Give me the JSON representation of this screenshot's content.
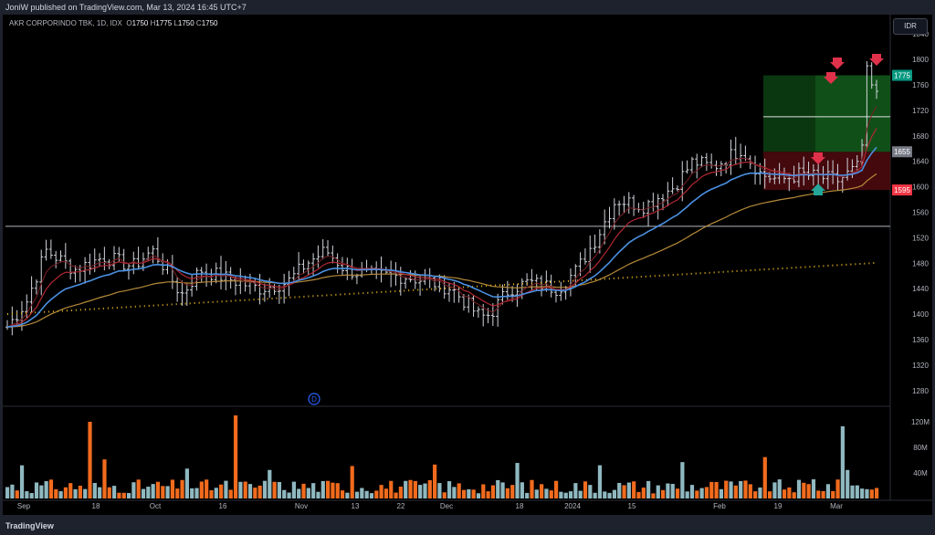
{
  "header": {
    "published": "JoniW published on TradingView.com, Mar 13, 2024 16:45 UTC+7"
  },
  "footer": {
    "brand": "TradingView"
  },
  "legend": {
    "symbol": "AKR CORPORINDO TBK, 1D, IDX",
    "o_label": "O",
    "o_value": "1750",
    "h_label": "H",
    "h_value": "1775",
    "l_label": "L",
    "l_value": "1750",
    "c_label": "C",
    "c_value": "1750"
  },
  "currency": "IDR",
  "event_marker": "D",
  "chart_data": {
    "type": "line",
    "ylim": [
      1250,
      1850
    ],
    "y_ticks": [
      "1280",
      "1320",
      "1360",
      "1400",
      "1440",
      "1480",
      "1520",
      "1560",
      "1600",
      "1640",
      "1680",
      "1720",
      "1760",
      "1800",
      "1840"
    ],
    "x_ticks": [
      "Sep",
      "18",
      "Oct",
      "16",
      "Nov",
      "13",
      "22",
      "Dec",
      "18",
      "2024",
      "15",
      "Feb",
      "19",
      "Mar"
    ],
    "volume_ticks": [
      "40M",
      "80M",
      "120M"
    ],
    "price_labels": [
      {
        "text": "1775",
        "value": 1775,
        "color": "#089981"
      },
      {
        "text": "1655",
        "value": 1655,
        "color": "#787b86"
      },
      {
        "text": "1595",
        "value": 1595,
        "color": "#f23645"
      }
    ],
    "horizontal_line": 1538,
    "colors": {
      "bars": "#d1d4dc",
      "ema_fast": "#b2b5be",
      "ema_red": "#b22833",
      "ema_blue": "#4a90e2",
      "ema_slow": "#b58a3a",
      "dotted": "#e6b422",
      "vol_up": "#8fb8c0",
      "vol_down": "#f26b1d",
      "arrow_down": "#e0314b",
      "arrow_up": "#26a69a"
    }
  }
}
